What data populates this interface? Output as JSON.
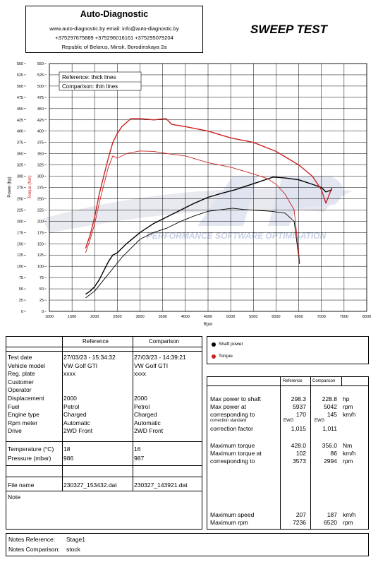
{
  "header": {
    "company": "Auto-Diagnostic",
    "contact_line": "www.auto-diagnostic.by     email: info@auto-diagnostic.by",
    "phones": "+375297675889  +375296016161  +375295079204",
    "address": "Republic of Belarus, Minsk, Borodinskaya 2a"
  },
  "report_title": "SWEEP TEST",
  "watermark": "PERFORMANCE SOFTWARE OPTIMISATION",
  "chart_data": {
    "type": "line",
    "xlabel": "Rpm",
    "ylabel_power": "Power (hp)",
    "ylabel_torque": "Torque (Nm)",
    "xlim": [
      1000,
      8000
    ],
    "ylim": [
      0,
      550
    ],
    "x_ticks": [
      1000,
      1500,
      2000,
      2500,
      3000,
      3500,
      4000,
      4500,
      5000,
      5500,
      6000,
      6500,
      7000,
      7500,
      8000
    ],
    "y_ticks": [
      0,
      25,
      50,
      75,
      100,
      125,
      150,
      175,
      200,
      225,
      250,
      275,
      300,
      325,
      350,
      375,
      400,
      425,
      450,
      475,
      500,
      525,
      550
    ],
    "grid": true,
    "legend": [
      "Reference: thick lines",
      "Comparison: thin lines"
    ],
    "colors": {
      "power": "#000000",
      "torque": "#cc2222"
    },
    "series": [
      {
        "name": "Reference",
        "quantity": "Shaft power",
        "x": [
          1800,
          1900,
          2000,
          2100,
          2200,
          2300,
          2400,
          2500,
          2700,
          3000,
          3300,
          3600,
          3900,
          4200,
          4500,
          4800,
          5100,
          5400,
          5700,
          5937,
          6200,
          6500,
          6800,
          7000,
          7100,
          7236
        ],
        "y": [
          38,
          45,
          55,
          70,
          90,
          110,
          125,
          130,
          150,
          175,
          195,
          210,
          225,
          240,
          253,
          262,
          270,
          280,
          290,
          298,
          296,
          292,
          282,
          275,
          265,
          270
        ]
      },
      {
        "name": "Comparison",
        "quantity": "Shaft power",
        "x": [
          1800,
          2000,
          2200,
          2400,
          2600,
          2800,
          3000,
          3300,
          3600,
          3900,
          4200,
          4500,
          4800,
          5042,
          5300,
          5600,
          5900,
          6200,
          6400,
          6520
        ],
        "y": [
          30,
          45,
          70,
          95,
          120,
          140,
          160,
          175,
          185,
          200,
          212,
          222,
          226,
          229,
          226,
          224,
          222,
          218,
          200,
          105
        ]
      },
      {
        "name": "Reference",
        "quantity": "Torque",
        "x": [
          1800,
          1900,
          2000,
          2100,
          2200,
          2300,
          2400,
          2500,
          2600,
          2800,
          3000,
          3300,
          3573,
          3700,
          4000,
          4500,
          5000,
          5500,
          6000,
          6500,
          6800,
          7000,
          7100,
          7236
        ],
        "y": [
          140,
          170,
          210,
          260,
          300,
          340,
          375,
          395,
          410,
          428,
          428,
          425,
          428,
          415,
          410,
          400,
          385,
          375,
          355,
          325,
          300,
          270,
          240,
          275
        ]
      },
      {
        "name": "Comparison",
        "quantity": "Torque",
        "x": [
          1800,
          1900,
          2000,
          2100,
          2200,
          2300,
          2400,
          2500,
          2700,
          2994,
          3300,
          3600,
          4000,
          4500,
          5000,
          5500,
          5800,
          6000,
          6200,
          6400,
          6520
        ],
        "y": [
          130,
          160,
          195,
          240,
          280,
          320,
          345,
          340,
          350,
          356,
          355,
          350,
          345,
          330,
          320,
          305,
          295,
          282,
          260,
          225,
          110
        ]
      }
    ]
  },
  "plot_legend": {
    "shaft_power": "Shaft power",
    "torque": "Torque"
  },
  "vehicle_table": {
    "headers": [
      "Reference",
      "Comparison"
    ],
    "rows": [
      {
        "label": "Test date",
        "ref": "27/03/23 - 15:34:32",
        "cmp": "27/03/23 - 14:39:21"
      },
      {
        "label": "Vehicle model",
        "ref": "VW Golf GTI",
        "cmp": "VW Golf GTI"
      },
      {
        "label": "Reg. plate",
        "ref": "xxxx",
        "cmp": "xxxx"
      },
      {
        "label": "Customer",
        "ref": "",
        "cmp": ""
      },
      {
        "label": "Operator",
        "ref": "",
        "cmp": ""
      },
      {
        "label": "Displacement",
        "ref": "2000",
        "cmp": "2000"
      },
      {
        "label": "Fuel",
        "ref": "Petrol",
        "cmp": "Petrol"
      },
      {
        "label": "Engine type",
        "ref": "Charged",
        "cmp": "Charged"
      },
      {
        "label": "Rpm meter",
        "ref": "Automatic",
        "cmp": "Automatic"
      },
      {
        "label": "Drive",
        "ref": "2WD Front",
        "cmp": "2WD Front"
      }
    ],
    "temperature": {
      "label": "Temperature (°C)",
      "ref": "18",
      "cmp": "16"
    },
    "pressure": {
      "label": "Pressure (mbar)",
      "ref": "986",
      "cmp": "987"
    },
    "file": {
      "label": "File name",
      "ref": "230327_153432.dat",
      "cmp": "230327_143921.dat"
    },
    "note_label": "Note"
  },
  "results_table": {
    "headers": [
      "Reference",
      "Comparison"
    ],
    "max_power": {
      "label": "Max power to shaft",
      "ref": "298.3",
      "cmp": "228.8",
      "unit": "hp"
    },
    "max_power_at": {
      "label": "Max power at",
      "ref": "5937",
      "cmp": "5042",
      "unit": "rpm"
    },
    "corresponding": {
      "label": "corresponding to",
      "ref": "170",
      "cmp": "145",
      "unit": "km/h"
    },
    "correction_standard": {
      "label": "correction standard",
      "ref": "EWG",
      "cmp": "EWG"
    },
    "correction_factor": {
      "label": "correction factor",
      "ref": "1,015",
      "cmp": "1,011"
    },
    "max_torque": {
      "label": "Maximum torque",
      "ref": "428.0",
      "cmp": "356.0",
      "unit": "Nm"
    },
    "max_torque_at": {
      "label": "Maximum torque at",
      "ref": "102",
      "cmp": "86",
      "unit": "km/h"
    },
    "torque_corr": {
      "label": "corresponding to",
      "ref": "3573",
      "cmp": "2994",
      "unit": "rpm"
    },
    "max_speed": {
      "label": "Maximum speed",
      "ref": "207",
      "cmp": "187",
      "unit": "km/h"
    },
    "max_rpm": {
      "label": "Maximum rpm",
      "ref": "7236",
      "cmp": "6520",
      "unit": "rpm"
    }
  },
  "notes": {
    "reference_label": "Notes Reference:",
    "reference_value": "Stage1",
    "comparison_label": "Notes Comparison:",
    "comparison_value": "stock"
  }
}
